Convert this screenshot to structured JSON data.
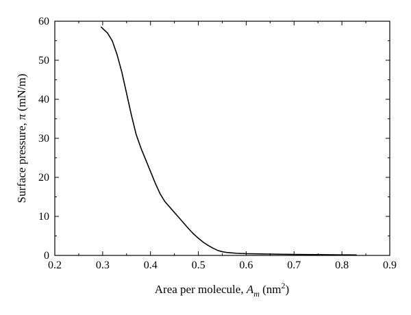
{
  "chart_data": {
    "type": "line",
    "xlabel": {
      "prefix": "Area per molecule, ",
      "symbol": "A",
      "subscript": "m",
      "unit_open": " (nm",
      "unit_sup": "2",
      "unit_close": ")"
    },
    "ylabel": {
      "prefix": "Surface pressure, ",
      "symbol": "π",
      "unit": " (mN/m)"
    },
    "xlim": [
      0.2,
      0.9
    ],
    "ylim": [
      0,
      60
    ],
    "xticks": [
      "0.2",
      "0.3",
      "0.4",
      "0.5",
      "0.6",
      "0.7",
      "0.8",
      "0.9"
    ],
    "yticks": [
      "0",
      "10",
      "20",
      "30",
      "40",
      "50",
      "60"
    ],
    "grid": false,
    "legend": "none",
    "line_color": "#000000",
    "series": [
      {
        "x": [
          0.297,
          0.31,
          0.32,
          0.33,
          0.34,
          0.35,
          0.36,
          0.37,
          0.38,
          0.39,
          0.4,
          0.41,
          0.42,
          0.43,
          0.44,
          0.45,
          0.46,
          0.47,
          0.48,
          0.49,
          0.5,
          0.51,
          0.52,
          0.53,
          0.54,
          0.55,
          0.56,
          0.58,
          0.6,
          0.65,
          0.7,
          0.75,
          0.8,
          0.83
        ],
        "y": [
          58.5,
          57.0,
          55.0,
          51.5,
          47.0,
          41.5,
          36.0,
          31.0,
          27.5,
          24.5,
          21.5,
          18.5,
          15.8,
          13.8,
          12.4,
          11.0,
          9.6,
          8.2,
          6.8,
          5.5,
          4.4,
          3.4,
          2.6,
          1.9,
          1.3,
          0.95,
          0.75,
          0.55,
          0.45,
          0.35,
          0.25,
          0.2,
          0.15,
          0.12
        ]
      }
    ]
  }
}
